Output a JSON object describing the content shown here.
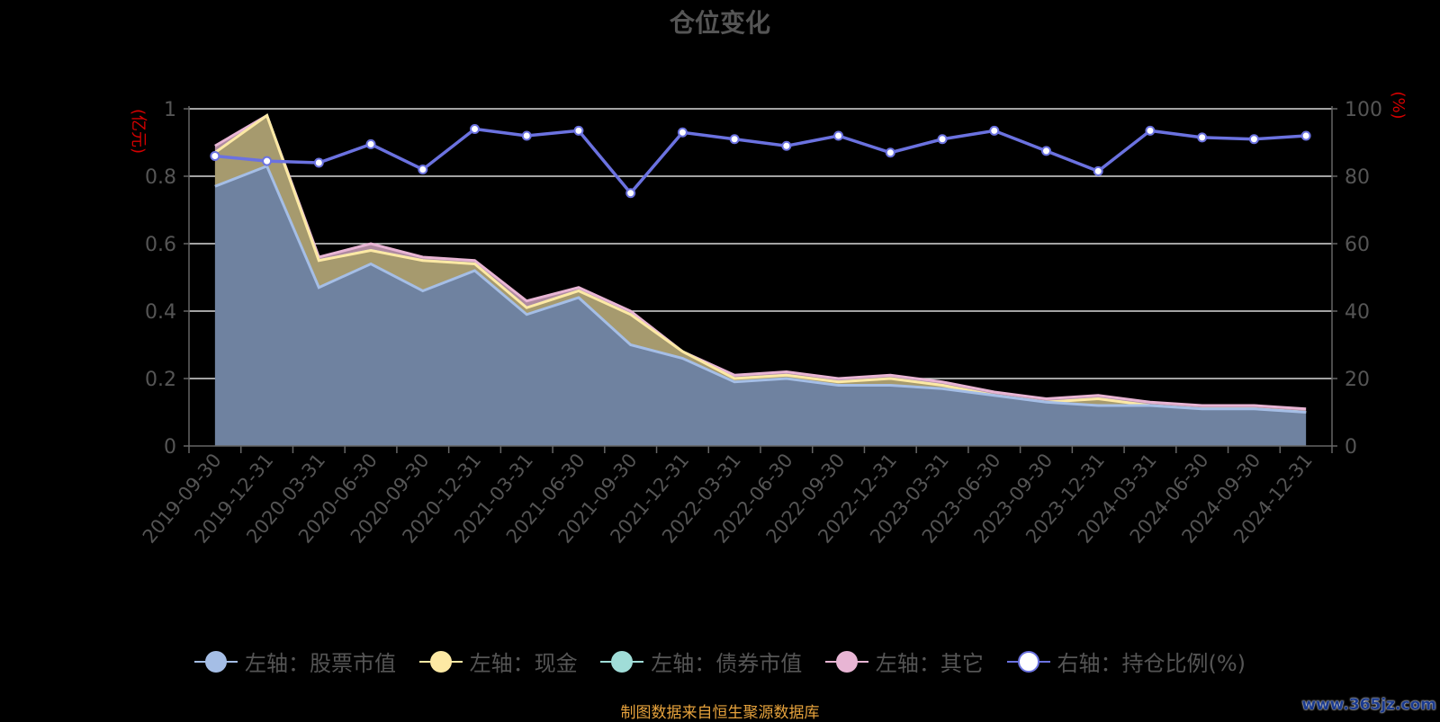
{
  "title": "仓位变化",
  "source_note": "制图数据来自恒生聚源数据库",
  "watermark": "www.365jz.com",
  "colors": {
    "stock": "#a5bee6",
    "cash": "#fde9a4",
    "bond": "#a0ddd8",
    "other": "#e8b5d4",
    "ratio": "#6b72e0"
  },
  "legend": [
    {
      "label": "左轴：股票市值",
      "color": "#a5bee6"
    },
    {
      "label": "左轴：现金",
      "color": "#fde9a4"
    },
    {
      "label": "左轴：债券市值",
      "color": "#a0ddd8"
    },
    {
      "label": "左轴：其它",
      "color": "#e8b5d4"
    },
    {
      "label": "右轴：持仓比例(%)",
      "color": "#6b72e0"
    }
  ],
  "chart_data": {
    "type": "area",
    "categories": [
      "2019-09-30",
      "2019-12-31",
      "2020-03-31",
      "2020-06-30",
      "2020-09-30",
      "2020-12-31",
      "2021-03-31",
      "2021-06-30",
      "2021-09-30",
      "2021-12-31",
      "2022-03-31",
      "2022-06-30",
      "2022-09-30",
      "2022-12-31",
      "2023-03-31",
      "2023-06-30",
      "2023-09-30",
      "2023-12-31",
      "2024-03-31",
      "2024-06-30",
      "2024-09-30",
      "2024-12-31"
    ],
    "left_axis": {
      "label": "(亿元)",
      "ylim": [
        0,
        1
      ],
      "ticks": [
        "0",
        "0.2",
        "0.4",
        "0.6",
        "0.8",
        "1"
      ]
    },
    "right_axis": {
      "label": "(%)",
      "ylim": [
        0,
        100
      ],
      "ticks": [
        "0",
        "20",
        "40",
        "60",
        "80",
        "100"
      ]
    },
    "series": [
      {
        "name": "左轴：股票市值",
        "axis": "left",
        "stacked": true,
        "values": [
          0.77,
          0.83,
          0.47,
          0.54,
          0.46,
          0.52,
          0.39,
          0.44,
          0.3,
          0.26,
          0.19,
          0.2,
          0.18,
          0.18,
          0.17,
          0.15,
          0.13,
          0.12,
          0.12,
          0.11,
          0.11,
          0.1
        ]
      },
      {
        "name": "左轴：现金",
        "axis": "left",
        "stacked": true,
        "values": [
          0.1,
          0.15,
          0.08,
          0.04,
          0.09,
          0.02,
          0.02,
          0.02,
          0.09,
          0.02,
          0.01,
          0.01,
          0.01,
          0.02,
          0.01,
          0.0,
          0.0,
          0.02,
          0.0,
          0.0,
          0.0,
          0.0
        ]
      },
      {
        "name": "左轴：债券市值",
        "axis": "left",
        "stacked": true,
        "values": [
          0,
          0,
          0,
          0,
          0,
          0,
          0,
          0,
          0,
          0,
          0,
          0,
          0,
          0,
          0,
          0,
          0,
          0,
          0,
          0,
          0,
          0
        ]
      },
      {
        "name": "左轴：其它",
        "axis": "left",
        "stacked": true,
        "values": [
          0.02,
          0.0,
          0.01,
          0.02,
          0.01,
          0.01,
          0.02,
          0.01,
          0.01,
          0.0,
          0.01,
          0.01,
          0.01,
          0.01,
          0.01,
          0.01,
          0.01,
          0.01,
          0.01,
          0.01,
          0.01,
          0.01
        ]
      },
      {
        "name": "右轴：持仓比例(%)",
        "axis": "right",
        "type": "line",
        "values": [
          86,
          84.5,
          84,
          89.5,
          82,
          94,
          92,
          93.5,
          75,
          93,
          91,
          89,
          92,
          87,
          91,
          93.5,
          87.5,
          81.5,
          93.5,
          91.5,
          91,
          92
        ]
      }
    ],
    "grid": true,
    "legend_position": "bottom"
  }
}
